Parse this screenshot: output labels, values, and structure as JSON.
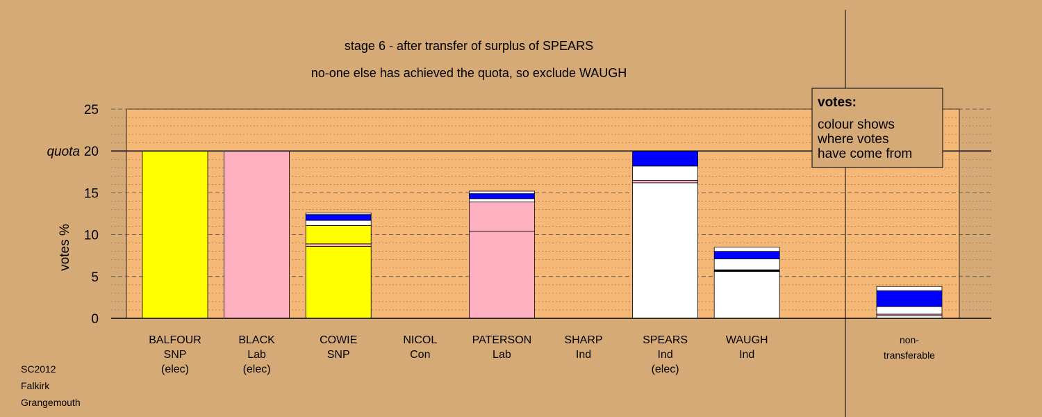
{
  "colors": {
    "background": "#d5aa77",
    "plot_area": "#f6b877",
    "SNP": "#ffff00",
    "Lab": "#ffb0c0",
    "Ind": "#ffffff",
    "transfer": "#0000ff"
  },
  "chart_data": {
    "type": "bar",
    "title": "stage 6 - after transfer of surplus of SPEARS",
    "subtitle": "no-one else has achieved the quota, so exclude WAUGH",
    "ylabel": "votes %",
    "ylim": [
      0,
      25
    ],
    "yticks": [
      {
        "value": 0,
        "label": "0"
      },
      {
        "value": 5,
        "label": "5"
      },
      {
        "value": 10,
        "label": "10"
      },
      {
        "value": 15,
        "label": "15"
      },
      {
        "value": 20,
        "label": "20"
      },
      {
        "value": 25,
        "label": "25"
      }
    ],
    "quota": {
      "value": 20,
      "label": "quota"
    },
    "candidates": [
      {
        "name": "BALFOUR",
        "party": "SNP",
        "status": "(elec)",
        "segments": [
          {
            "value": 20,
            "color": "#ffff00"
          }
        ]
      },
      {
        "name": "BLACK",
        "party": "Lab",
        "status": "(elec)",
        "segments": [
          {
            "value": 20,
            "color": "#ffb0c0"
          }
        ]
      },
      {
        "name": "COWIE",
        "party": "SNP",
        "status": "",
        "segments": [
          {
            "value": 8.6,
            "color": "#ffff00"
          },
          {
            "value": 0.3,
            "color": "#ffb0c0"
          },
          {
            "value": 2.2,
            "color": "#ffff00"
          },
          {
            "value": 0.6,
            "color": "#ffffff"
          },
          {
            "value": 0.7,
            "color": "#0000ff"
          },
          {
            "value": 0.2,
            "color": "#ffffff"
          }
        ]
      },
      {
        "name": "NICOL",
        "party": "Con",
        "status": "",
        "segments": []
      },
      {
        "name": "PATERSON",
        "party": "Lab",
        "status": "",
        "segments": [
          {
            "value": 10.4,
            "color": "#ffb0c0"
          },
          {
            "value": 3.5,
            "color": "#ffb0c0"
          },
          {
            "value": 0.4,
            "color": "#ffffff"
          },
          {
            "value": 0.6,
            "color": "#0000ff"
          },
          {
            "value": 0.3,
            "color": "#ffffff"
          }
        ]
      },
      {
        "name": "SHARP",
        "party": "Ind",
        "status": "",
        "segments": []
      },
      {
        "name": "SPEARS",
        "party": "Ind",
        "status": "(elec)",
        "segments": [
          {
            "value": 16.2,
            "color": "#ffffff"
          },
          {
            "value": 0.3,
            "color": "#ffb0c0"
          },
          {
            "value": 1.7,
            "color": "#ffffff"
          },
          {
            "value": 1.8,
            "color": "#0000ff"
          }
        ]
      },
      {
        "name": "WAUGH",
        "party": "Ind",
        "status": "",
        "segments": [
          {
            "value": 5.6,
            "color": "#ffffff"
          },
          {
            "value": 0.2,
            "color": "#000000"
          },
          {
            "value": 1.3,
            "color": "#ffffff"
          },
          {
            "value": 0.9,
            "color": "#0000ff"
          },
          {
            "value": 0.5,
            "color": "#ffffff"
          }
        ]
      }
    ],
    "nontransferable": {
      "label1": "non-",
      "label2": "transferable",
      "segments": [
        {
          "value": 0.3,
          "color": "#ffffff"
        },
        {
          "value": 0.2,
          "color": "#ffb0c0"
        },
        {
          "value": 0.9,
          "color": "#ffffff"
        },
        {
          "value": 1.9,
          "color": "#0000ff"
        },
        {
          "value": 0.5,
          "color": "#ffffff"
        }
      ]
    },
    "legend": {
      "heading": "votes:",
      "lines": [
        "colour shows",
        "where votes",
        "have come from"
      ],
      "placement": "top-right"
    }
  },
  "footer": [
    "SC2012",
    "Falkirk",
    "Grangemouth"
  ]
}
